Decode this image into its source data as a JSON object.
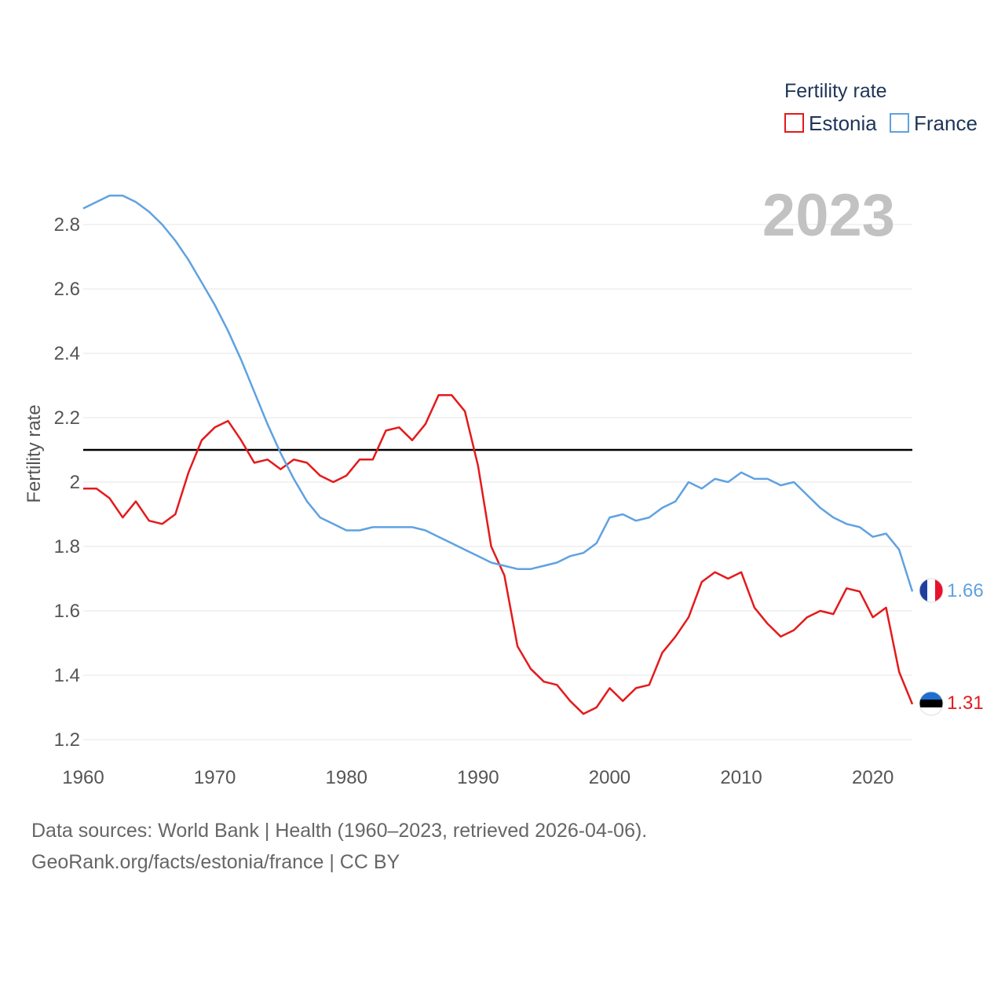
{
  "chart_data": {
    "type": "line",
    "current_year": "2023",
    "ylabel": "Fertility rate",
    "xlim": [
      1960,
      2023
    ],
    "ylim": [
      1.2,
      2.9
    ],
    "yticks": [
      1.2,
      1.4,
      1.6,
      1.8,
      2,
      2.2,
      2.4,
      2.6,
      2.8
    ],
    "ytick_labels": [
      "1.2",
      "1.4",
      "1.6",
      "1.8",
      "2",
      "2.2",
      "2.4",
      "2.6",
      "2.8"
    ],
    "xticks": [
      1960,
      1970,
      1980,
      1990,
      2000,
      2010,
      2020
    ],
    "xtick_labels": [
      "1960",
      "1970",
      "1980",
      "1990",
      "2000",
      "2010",
      "2020"
    ],
    "reference_line": 2.1,
    "legend": {
      "title": "Fertility rate",
      "position": "top-right"
    },
    "x": [
      1960,
      1961,
      1962,
      1963,
      1964,
      1965,
      1966,
      1967,
      1968,
      1969,
      1970,
      1971,
      1972,
      1973,
      1974,
      1975,
      1976,
      1977,
      1978,
      1979,
      1980,
      1981,
      1982,
      1983,
      1984,
      1985,
      1986,
      1987,
      1988,
      1989,
      1990,
      1991,
      1992,
      1993,
      1994,
      1995,
      1996,
      1997,
      1998,
      1999,
      2000,
      2001,
      2002,
      2003,
      2004,
      2005,
      2006,
      2007,
      2008,
      2009,
      2010,
      2011,
      2012,
      2013,
      2014,
      2015,
      2016,
      2017,
      2018,
      2019,
      2020,
      2021,
      2022,
      2023
    ],
    "series": [
      {
        "name": "Estonia",
        "color": "#e41a1c",
        "end_label": "1.31",
        "values": [
          1.98,
          1.98,
          1.95,
          1.89,
          1.94,
          1.88,
          1.87,
          1.9,
          2.03,
          2.13,
          2.17,
          2.19,
          2.13,
          2.06,
          2.07,
          2.04,
          2.07,
          2.06,
          2.02,
          2.0,
          2.02,
          2.07,
          2.07,
          2.16,
          2.17,
          2.13,
          2.18,
          2.27,
          2.27,
          2.22,
          2.05,
          1.8,
          1.71,
          1.49,
          1.42,
          1.38,
          1.37,
          1.32,
          1.28,
          1.3,
          1.36,
          1.32,
          1.36,
          1.37,
          1.47,
          1.52,
          1.58,
          1.69,
          1.72,
          1.7,
          1.72,
          1.61,
          1.56,
          1.52,
          1.54,
          1.58,
          1.6,
          1.59,
          1.67,
          1.66,
          1.58,
          1.61,
          1.41,
          1.31
        ]
      },
      {
        "name": "France",
        "color": "#5fa2e0",
        "end_label": "1.66",
        "values": [
          2.85,
          2.87,
          2.89,
          2.89,
          2.87,
          2.84,
          2.8,
          2.75,
          2.69,
          2.62,
          2.55,
          2.47,
          2.38,
          2.28,
          2.18,
          2.09,
          2.01,
          1.94,
          1.89,
          1.87,
          1.85,
          1.85,
          1.86,
          1.86,
          1.86,
          1.86,
          1.85,
          1.83,
          1.81,
          1.79,
          1.77,
          1.75,
          1.74,
          1.73,
          1.73,
          1.74,
          1.75,
          1.77,
          1.78,
          1.81,
          1.89,
          1.9,
          1.88,
          1.89,
          1.92,
          1.94,
          2.0,
          1.98,
          2.01,
          2.0,
          2.03,
          2.01,
          2.01,
          1.99,
          2.0,
          1.96,
          1.92,
          1.89,
          1.87,
          1.86,
          1.83,
          1.84,
          1.79,
          1.66
        ]
      }
    ]
  },
  "footer": {
    "line1": "Data sources: World Bank | Health (1960–2023, retrieved 2026-04-06).",
    "line2": "GeoRank.org/facts/estonia/france | CC BY"
  },
  "icons": {
    "estonia": "estonia-flag-icon",
    "france": "france-flag-icon"
  }
}
